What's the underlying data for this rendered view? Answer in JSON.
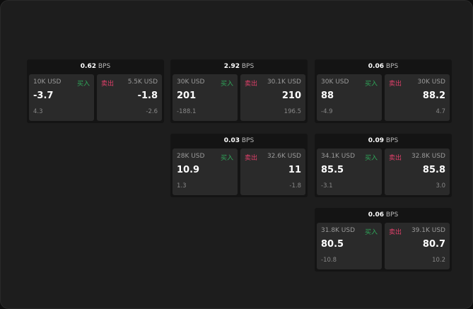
{
  "cards": [
    {
      "spread": "0.62",
      "unit": "BPS",
      "buy": {
        "amount": "10K USD",
        "label": "买入",
        "price": "-3.7",
        "change": "4.3"
      },
      "sell": {
        "amount": "5.5K USD",
        "label": "卖出",
        "price": "-1.8",
        "change": "-2.6"
      }
    },
    {
      "spread": "2.92",
      "unit": "BPS",
      "buy": {
        "amount": "30K USD",
        "label": "买入",
        "price": "201",
        "change": "-188.1"
      },
      "sell": {
        "amount": "30.1K USD",
        "label": "卖出",
        "price": "210",
        "change": "196.5"
      }
    },
    {
      "spread": "0.06",
      "unit": "BPS",
      "buy": {
        "amount": "30K USD",
        "label": "买入",
        "price": "88",
        "change": "-4.9"
      },
      "sell": {
        "amount": "30K USD",
        "label": "卖出",
        "price": "88.2",
        "change": "4.7"
      }
    },
    {
      "spread": "0.03",
      "unit": "BPS",
      "buy": {
        "amount": "28K USD",
        "label": "买入",
        "price": "10.9",
        "change": "1.3"
      },
      "sell": {
        "amount": "32.6K USD",
        "label": "卖出",
        "price": "11",
        "change": "-1.8"
      }
    },
    {
      "spread": "0.09",
      "unit": "BPS",
      "buy": {
        "amount": "34.1K USD",
        "label": "买入",
        "price": "85.5",
        "change": "-3.1"
      },
      "sell": {
        "amount": "32.8K USD",
        "label": "卖出",
        "price": "85.8",
        "change": "3.0"
      }
    },
    {
      "spread": "0.06",
      "unit": "BPS",
      "buy": {
        "amount": "31.8K USD",
        "label": "买入",
        "price": "80.5",
        "change": "-10.8"
      },
      "sell": {
        "amount": "39.1K USD",
        "label": "卖出",
        "price": "80.7",
        "change": "10.2"
      }
    }
  ],
  "colors": {
    "buy": "#2fa85a",
    "sell": "#e0406a"
  }
}
